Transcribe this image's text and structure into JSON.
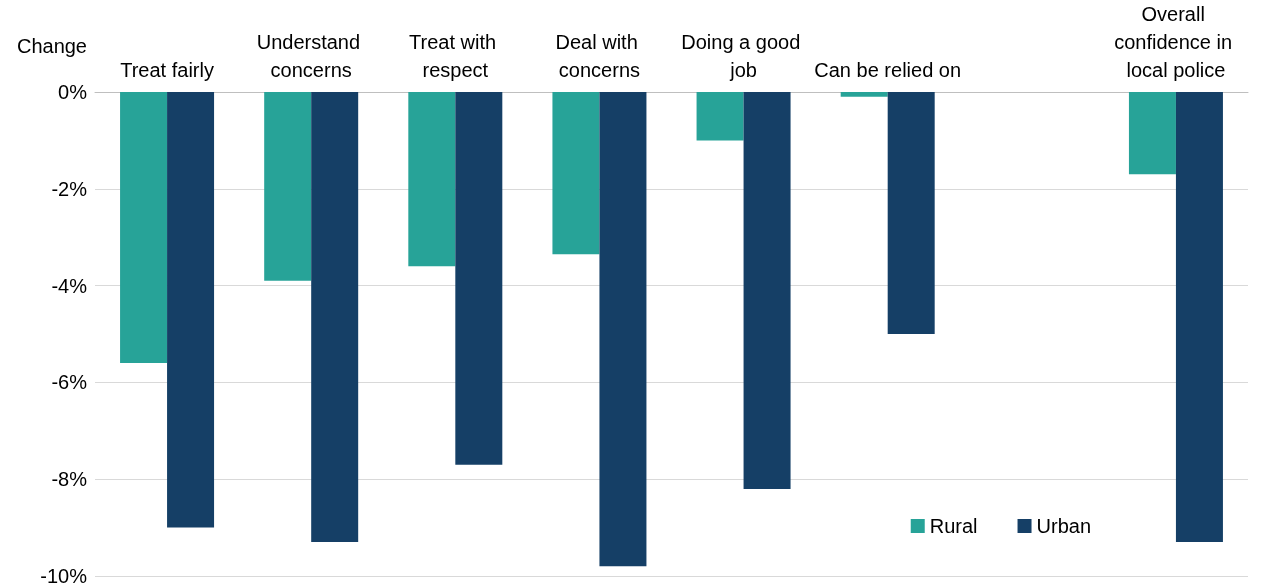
{
  "chart_data": {
    "type": "bar",
    "ylabel": "Change",
    "categories": [
      "Treat fairly",
      "Understand concerns",
      "Treat with respect",
      "Deal with concerns",
      "Doing a good job",
      "Can be relied on",
      null,
      "Overall confidence in local police"
    ],
    "series": [
      {
        "name": "Rural",
        "color": "#27a398",
        "values": [
          -5.6,
          -3.9,
          -3.6,
          -3.35,
          -1.0,
          -0.1,
          null,
          -1.7
        ]
      },
      {
        "name": "Urban",
        "color": "#153f66",
        "values": [
          -9.0,
          -9.3,
          -7.7,
          -9.8,
          -8.2,
          -5.0,
          null,
          -9.3
        ]
      }
    ],
    "ylim": [
      -10,
      0
    ],
    "yticks": [
      {
        "value": 0,
        "label": "0%"
      },
      {
        "value": -2,
        "label": "-2%"
      },
      {
        "value": -4,
        "label": "-4%"
      },
      {
        "value": -6,
        "label": "-6%"
      },
      {
        "value": -8,
        "label": "-8%"
      },
      {
        "value": -10,
        "label": "-10%"
      }
    ],
    "grid": "y",
    "legend": "bottom right"
  }
}
